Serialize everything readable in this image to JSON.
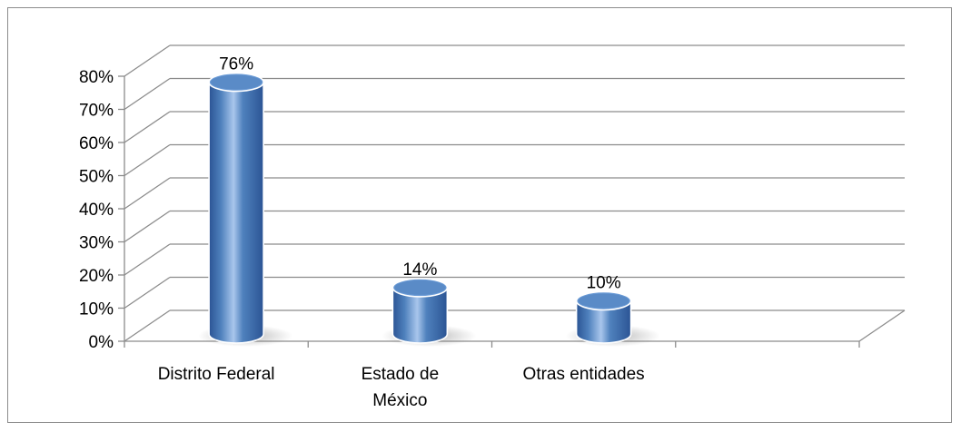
{
  "chart_data": {
    "type": "bar",
    "style": "3d-cylinder",
    "categories": [
      "Distrito Federal",
      "Estado de México",
      "Otras entidades"
    ],
    "category_lines": [
      [
        "Distrito Federal"
      ],
      [
        "Estado de",
        "México"
      ],
      [
        "Otras entidades"
      ]
    ],
    "values": [
      76,
      14,
      10
    ],
    "data_labels": [
      "76%",
      "14%",
      "10%"
    ],
    "title": "",
    "xlabel": "",
    "ylabel": "",
    "ylim": [
      0,
      80
    ],
    "yticks": [
      0,
      10,
      20,
      30,
      40,
      50,
      60,
      70,
      80
    ],
    "ytick_labels": [
      "0%",
      "10%",
      "20%",
      "30%",
      "40%",
      "50%",
      "60%",
      "70%",
      "80%"
    ],
    "category_slots": 4,
    "grid": true,
    "legend": "none",
    "colors": {
      "bar_fill": "#4f81bd",
      "bar_dark": "#2b5494",
      "bar_light": "#a9c6ec",
      "bar_top": "#6b9bd6",
      "grid": "#8c8c8c"
    }
  }
}
